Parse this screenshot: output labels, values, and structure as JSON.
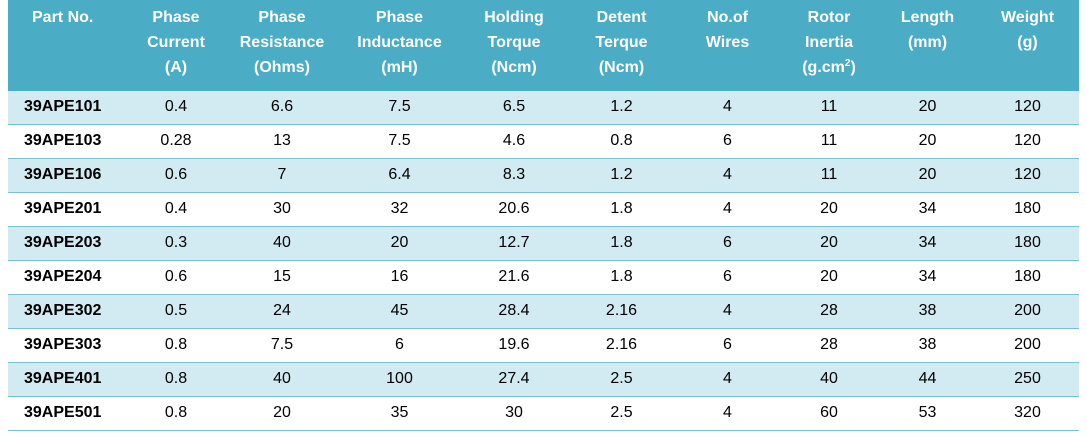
{
  "table": {
    "headers": [
      {
        "lines": [
          "Part No."
        ]
      },
      {
        "lines": [
          "Phase",
          "Current",
          "(A)"
        ]
      },
      {
        "lines": [
          "Phase",
          "Resistance",
          "(Ohms)"
        ]
      },
      {
        "lines": [
          "Phase",
          "Inductance",
          "(mH)"
        ]
      },
      {
        "lines": [
          "Holding",
          "Torque",
          "(Ncm)"
        ]
      },
      {
        "lines": [
          "Detent",
          "Terque",
          "(Ncm)"
        ]
      },
      {
        "lines": [
          "No.of",
          "Wires"
        ]
      },
      {
        "lines": [
          "Rotor",
          "Inertia",
          "(g.cm"
        ],
        "sup": "2",
        "suffix": ")"
      },
      {
        "lines": [
          "Length",
          "(mm)"
        ]
      },
      {
        "lines": [
          "Weight",
          "(g)"
        ]
      }
    ],
    "rows": [
      [
        "39APE101",
        "0.4",
        "6.6",
        "7.5",
        "6.5",
        "1.2",
        "4",
        "11",
        "20",
        "120"
      ],
      [
        "39APE103",
        "0.28",
        "13",
        "7.5",
        "4.6",
        "0.8",
        "6",
        "11",
        "20",
        "120"
      ],
      [
        "39APE106",
        "0.6",
        "7",
        "6.4",
        "8.3",
        "1.2",
        "4",
        "11",
        "20",
        "120"
      ],
      [
        "39APE201",
        "0.4",
        "30",
        "32",
        "20.6",
        "1.8",
        "4",
        "20",
        "34",
        "180"
      ],
      [
        "39APE203",
        "0.3",
        "40",
        "20",
        "12.7",
        "1.8",
        "6",
        "20",
        "34",
        "180"
      ],
      [
        "39APE204",
        "0.6",
        "15",
        "16",
        "21.6",
        "1.8",
        "6",
        "20",
        "34",
        "180"
      ],
      [
        "39APE302",
        "0.5",
        "24",
        "45",
        "28.4",
        "2.16",
        "4",
        "28",
        "38",
        "200"
      ],
      [
        "39APE303",
        "0.8",
        "7.5",
        "6",
        "19.6",
        "2.16",
        "6",
        "28",
        "38",
        "200"
      ],
      [
        "39APE401",
        "0.8",
        "40",
        "100",
        "27.4",
        "2.5",
        "4",
        "40",
        "44",
        "250"
      ],
      [
        "39APE501",
        "0.8",
        "20",
        "35",
        "30",
        "2.5",
        "4",
        "60",
        "53",
        "320"
      ]
    ]
  },
  "colors": {
    "header_bg": "#4bacc6",
    "header_text": "#ffffff",
    "band_row": "#d2eaf1",
    "plain_row": "#ffffff",
    "divider": "#78c0d4"
  }
}
